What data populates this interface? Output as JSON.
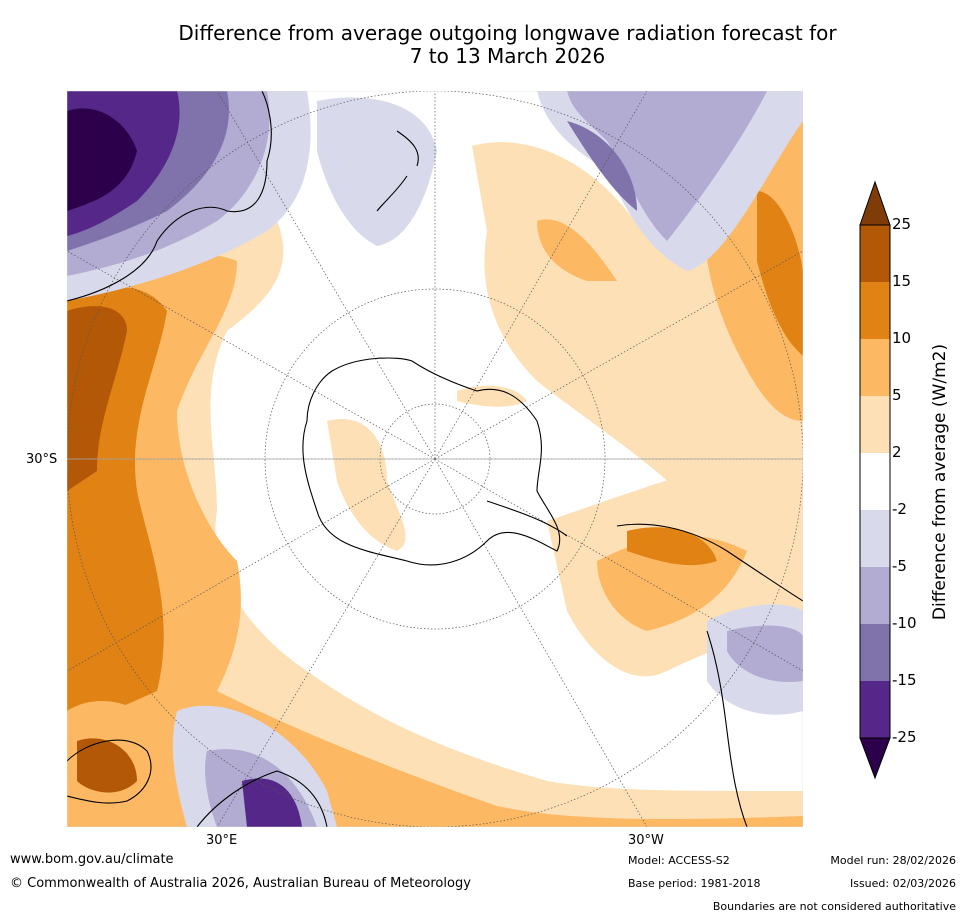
{
  "title": {
    "line1": "Difference from average outgoing longwave radiation forecast for",
    "line2": "7 to 13 March 2026"
  },
  "map": {
    "projection": "south-polar-stereographic",
    "lat_label": "30°S",
    "lon_labels": [
      "30°E",
      "30°W"
    ]
  },
  "colorbar": {
    "label": "Difference from average (W/m2)",
    "ticks": [
      "25",
      "15",
      "10",
      "5",
      "2",
      "-2",
      "-5",
      "-10",
      "-15",
      "-25"
    ],
    "colors": {
      "over": "#7f3b08",
      "15_25": "#b35806",
      "10_15": "#e08214",
      "5_10": "#fdb863",
      "2_5": "#fee0b6",
      "neutral": "#ffffff",
      "m5_m2": "#d8daeb",
      "m10_m5": "#b2abd2",
      "m15_m10": "#8073ac",
      "m25_m15": "#542788",
      "under": "#2d004b"
    }
  },
  "footer": {
    "website": "www.bom.gov.au/climate",
    "copyright": "© Commonwealth of Australia 2026, Australian Bureau of Meteorology",
    "model": "Model: ACCESS-S2",
    "base_period": "Base period: 1981-2018",
    "model_run": "Model run: 28/02/2026",
    "issued": "Issued: 02/03/2026",
    "disclaimer": "Boundaries are not considered authoritative"
  }
}
